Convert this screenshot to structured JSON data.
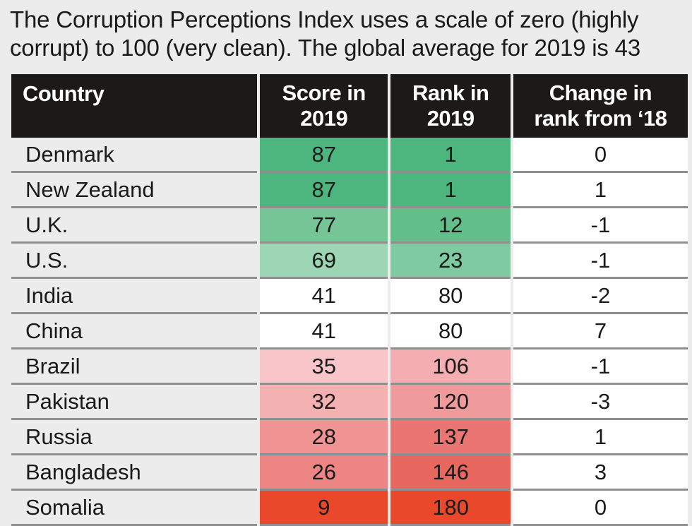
{
  "subtitle": "The Corruption Perceptions Index uses a scale of zero (highly corrupt) to 100 (very clean). The global average for 2019 is 43",
  "colors": {
    "page_background": "#ececec",
    "header_background": "#1c1a19",
    "header_text": "#ffffff",
    "neutral_cell": "#ffffff",
    "row_divider": "#8f8f8f"
  },
  "chart_data": {
    "type": "table",
    "title": "",
    "subtitle": "The Corruption Perceptions Index uses a scale of zero (highly corrupt) to 100 (very clean). The global average for 2019 is 43",
    "columns": [
      {
        "line1": "Country",
        "line2": ""
      },
      {
        "line1": "Score in",
        "line2": "2019"
      },
      {
        "line1": "Rank in",
        "line2": "2019"
      },
      {
        "line1": "Change in",
        "line2": "rank from ‘18"
      }
    ],
    "rows": [
      {
        "country": "Denmark",
        "score": 87,
        "rank": 1,
        "change": 0,
        "score_color": "#4cb67e",
        "rank_color": "#4cb67e"
      },
      {
        "country": "New Zealand",
        "score": 87,
        "rank": 1,
        "change": 1,
        "score_color": "#4cb67e",
        "rank_color": "#4cb67e"
      },
      {
        "country": "U.K.",
        "score": 77,
        "rank": 12,
        "change": -1,
        "score_color": "#76c597",
        "rank_color": "#62bf8a"
      },
      {
        "country": "U.S.",
        "score": 69,
        "rank": 23,
        "change": -1,
        "score_color": "#9dd6b4",
        "rank_color": "#7fcaa0"
      },
      {
        "country": "India",
        "score": 41,
        "rank": 80,
        "change": -2,
        "score_color": "#ffffff",
        "rank_color": "#ffffff"
      },
      {
        "country": "China",
        "score": 41,
        "rank": 80,
        "change": 7,
        "score_color": "#ffffff",
        "rank_color": "#ffffff"
      },
      {
        "country": "Brazil",
        "score": 35,
        "rank": 106,
        "change": -1,
        "score_color": "#f8c6c9",
        "rank_color": "#f4adb1"
      },
      {
        "country": "Pakistan",
        "score": 32,
        "rank": 120,
        "change": -3,
        "score_color": "#f4b1b2",
        "rank_color": "#ef9a9b"
      },
      {
        "country": "Russia",
        "score": 28,
        "rank": 137,
        "change": 1,
        "score_color": "#ef9393",
        "rank_color": "#ea7572"
      },
      {
        "country": "Bangladesh",
        "score": 26,
        "rank": 146,
        "change": 3,
        "score_color": "#ec8583",
        "rank_color": "#e8685f"
      },
      {
        "country": "Somalia",
        "score": 9,
        "rank": 180,
        "change": 0,
        "score_color": "#e9492a",
        "rank_color": "#e9492a"
      }
    ]
  }
}
